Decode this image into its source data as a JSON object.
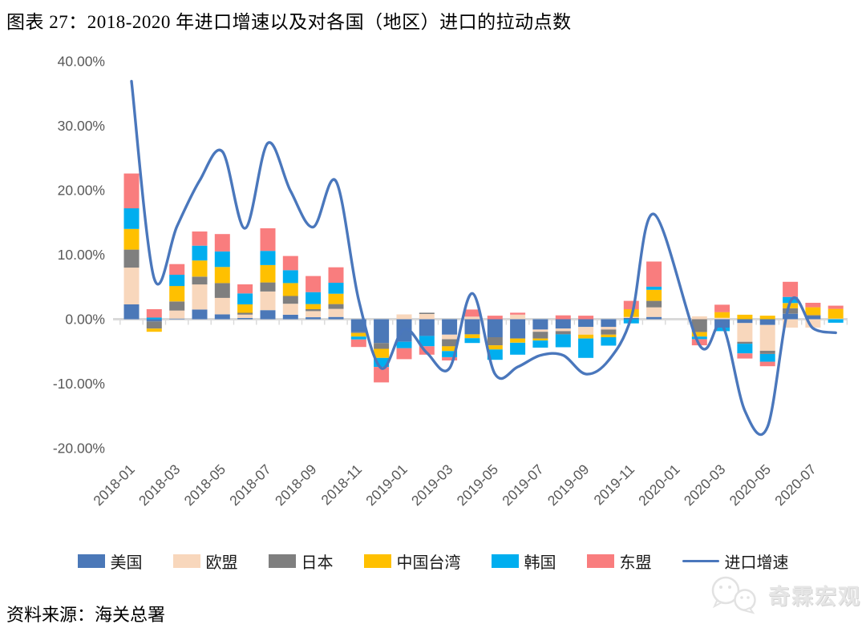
{
  "page": {
    "title": "图表 27：2018-2020 年进口增速以及对各国（地区）进口的拉动点数"
  },
  "footer": {
    "source": "资料来源：海关总署"
  },
  "watermark": {
    "text": "奇霖宏观",
    "icon": "wechat-bubbles-icon",
    "color": "#e6e6e6"
  },
  "chart_data": {
    "type": "stacked-bar+line",
    "title": "2018-2020 年进口增速以及对各国（地区）进口的拉动点数",
    "unit": "%",
    "ylim": [
      -20,
      40
    ],
    "gridlines": false,
    "legend_position": "bottom",
    "axis_color": "#d9d9d9",
    "tick_label_color": "#595959",
    "months": [
      "2018-01",
      "2018-02",
      "2018-03",
      "2018-04",
      "2018-05",
      "2018-06",
      "2018-07",
      "2018-08",
      "2018-09",
      "2018-10",
      "2018-11",
      "2018-12",
      "2019-01",
      "2019-02",
      "2019-03",
      "2019-04",
      "2019-05",
      "2019-06",
      "2019-07",
      "2019-08",
      "2019-09",
      "2019-10",
      "2019-11",
      "2019-12",
      "2020-01",
      "2020-02",
      "2020-03",
      "2020-04",
      "2020-05",
      "2020-06",
      "2020-07",
      "2020-08"
    ],
    "x_tick_labels": [
      "2018-01",
      "2018-03",
      "2018-05",
      "2018-07",
      "2018-09",
      "2018-11",
      "2019-01",
      "2019-03",
      "2019-05",
      "2019-07",
      "2019-09",
      "2019-11",
      "2020-01",
      "2020-03",
      "2020-05",
      "2020-07"
    ],
    "y_ticks": [
      {
        "label": "40.00%",
        "value": 40
      },
      {
        "label": "30.00%",
        "value": 30
      },
      {
        "label": "20.00%",
        "value": 20
      },
      {
        "label": "10.00%",
        "value": 10
      },
      {
        "label": "0.00%",
        "value": 0
      },
      {
        "label": "-10.00%",
        "value": -10
      },
      {
        "label": "-20.00%",
        "value": -20
      }
    ],
    "bar_series": [
      {
        "key": "us",
        "label": "美国",
        "color": "#4b78b8",
        "values": [
          2.3,
          -0.35,
          0.1,
          1.5,
          0.75,
          0.2,
          1.4,
          0.7,
          0.3,
          0.35,
          -2.0,
          -3.7,
          -3.5,
          -2.6,
          -2.4,
          -2.35,
          -2.8,
          -3.0,
          -1.6,
          -1.45,
          -1.2,
          -1.2,
          0.2,
          0.35,
          0,
          0,
          -1.3,
          -0.6,
          -0.9,
          0.85,
          0.5,
          0
        ]
      },
      {
        "key": "eu",
        "label": "欧盟",
        "color": "#f8d7bc",
        "values": [
          5.7,
          0,
          1.25,
          3.9,
          2.55,
          0.5,
          2.9,
          1.7,
          0.95,
          1.25,
          0,
          0,
          0.75,
          0.8,
          -0.7,
          0.4,
          0,
          0.7,
          -0.35,
          -0.4,
          -1.2,
          -0.4,
          0.15,
          1.5,
          0,
          0.45,
          0.2,
          -2.9,
          -4.0,
          -1.3,
          -1.3,
          0.1
        ]
      },
      {
        "key": "jp",
        "label": "日本",
        "color": "#7f7f7f",
        "values": [
          2.8,
          -1.1,
          1.4,
          1.2,
          2.3,
          0.3,
          1.4,
          1.2,
          0.3,
          0.75,
          -0.15,
          -0.9,
          0,
          0.2,
          -1.1,
          0,
          -1.25,
          0,
          -1.05,
          -0.5,
          0,
          -0.8,
          0,
          1.0,
          0,
          -2.0,
          0,
          -0.3,
          -0.5,
          0.85,
          0.15,
          0
        ]
      },
      {
        "key": "tw",
        "label": "中国台湾",
        "color": "#ffc000",
        "values": [
          3.2,
          -0.5,
          2.4,
          2.5,
          2.5,
          1.3,
          2.7,
          2.0,
          0.8,
          1.6,
          -0.55,
          -1.4,
          0,
          0,
          -0.75,
          -0.6,
          -0.65,
          -0.65,
          -0.3,
          0,
          -0.6,
          -0.4,
          1.2,
          1.7,
          0,
          -0.7,
          0.9,
          0.7,
          0.55,
          0.8,
          1.2,
          1.5
        ]
      },
      {
        "key": "kr",
        "label": "韩国",
        "color": "#00aeef",
        "values": [
          3.2,
          0.25,
          1.75,
          2.3,
          2.4,
          1.7,
          2.2,
          2.0,
          1.85,
          1.7,
          -0.45,
          -1.4,
          -1.0,
          -1.6,
          -0.95,
          -0.75,
          -1.6,
          -1.85,
          -1.1,
          -2.0,
          -3.0,
          -1.3,
          -0.65,
          0.5,
          0,
          -0.4,
          -0.55,
          -1.5,
          -1.2,
          0.95,
          0,
          -0.55
        ]
      },
      {
        "key": "asean",
        "label": "东盟",
        "color": "#f97d7e",
        "values": [
          5.4,
          1.3,
          1.65,
          2.2,
          2.7,
          1.4,
          3.5,
          2.2,
          2.5,
          2.4,
          -1.15,
          -2.4,
          -1.7,
          -1.3,
          -0.5,
          1.1,
          0.55,
          0.3,
          0,
          0.6,
          0.55,
          0,
          1.3,
          3.9,
          0,
          -0.95,
          1.15,
          -0.8,
          -0.7,
          2.35,
          0.7,
          0.5
        ]
      }
    ],
    "line_series": {
      "key": "import-growth",
      "label": "进口增速",
      "color": "#4a77bc",
      "values": [
        36.9,
        6.3,
        14.4,
        21.5,
        26.0,
        14.1,
        27.3,
        19.9,
        14.3,
        21.4,
        3.0,
        -7.6,
        -1.5,
        -5.2,
        -7.6,
        4.0,
        -8.5,
        -7.4,
        -5.6,
        -5.6,
        -8.5,
        -6.4,
        0.3,
        16.3,
        null,
        -4.0,
        -0.9,
        -14.2,
        -16.7,
        2.7,
        -1.4,
        -2.1
      ]
    }
  }
}
